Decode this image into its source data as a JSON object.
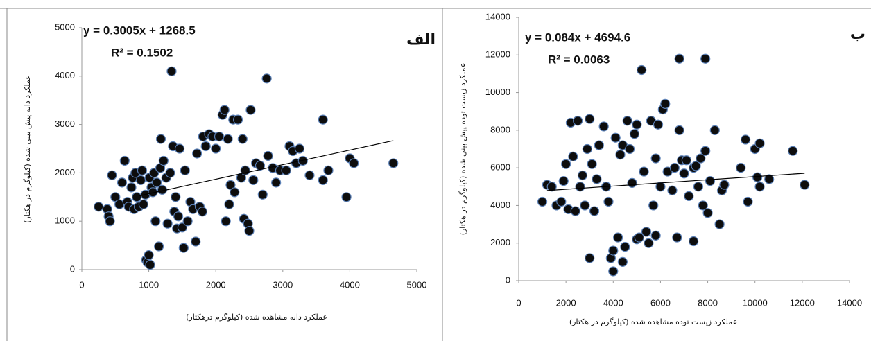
{
  "chart_data": [
    {
      "type": "scatter",
      "title": "الف",
      "equation": "y = 0.3005x + 1268.5",
      "r2_label": "R² = 0.1502",
      "x_label": "عملکرد دانه مشاهده شده (کیلوگرم درهکتار)",
      "y_label": "عملکرد دانه پیش بینی شده (کیلوگرم در هکتار)",
      "xlim": [
        0,
        5000
      ],
      "ylim": [
        0,
        5000
      ],
      "xticks": [
        0,
        1000,
        2000,
        3000,
        4000,
        5000
      ],
      "yticks": [
        0,
        1000,
        2000,
        3000,
        4000,
        5000
      ],
      "color": "#0d0d0d",
      "edge_color": "#5a7fb5",
      "trendline": {
        "slope": 0.3005,
        "intercept": 1268.5,
        "xrange": [
          850,
          4650
        ]
      },
      "x": [
        250,
        380,
        400,
        420,
        450,
        500,
        560,
        600,
        640,
        680,
        700,
        740,
        760,
        780,
        800,
        820,
        850,
        880,
        900,
        920,
        950,
        960,
        980,
        1000,
        1010,
        1020,
        1040,
        1060,
        1080,
        1100,
        1120,
        1150,
        1170,
        1180,
        1200,
        1220,
        1260,
        1280,
        1320,
        1340,
        1360,
        1380,
        1400,
        1420,
        1440,
        1460,
        1500,
        1520,
        1540,
        1580,
        1620,
        1660,
        1700,
        1720,
        1760,
        1800,
        1810,
        1850,
        1900,
        1950,
        2000,
        2050,
        2100,
        2130,
        2150,
        2180,
        2200,
        2220,
        2260,
        2280,
        2330,
        2380,
        2400,
        2420,
        2440,
        2480,
        2500,
        2520,
        2560,
        2600,
        2660,
        2700,
        2760,
        2780,
        2850,
        2900,
        2960,
        3050,
        3100,
        3150,
        3200,
        3250,
        3300,
        3400,
        3600,
        3600,
        3680,
        3950,
        4000,
        4060,
        4650
      ],
      "values": [
        1300,
        1250,
        1100,
        1000,
        1950,
        1500,
        1350,
        1800,
        2250,
        1400,
        1300,
        1700,
        1900,
        1250,
        2000,
        1500,
        1300,
        1850,
        2050,
        1350,
        1550,
        200,
        150,
        300,
        1900,
        100,
        1700,
        1600,
        2000,
        1000,
        1800,
        480,
        2100,
        2700,
        1650,
        2250,
        1900,
        950,
        2000,
        4100,
        2550,
        1200,
        1500,
        850,
        1100,
        2500,
        870,
        450,
        2050,
        1000,
        1400,
        1250,
        580,
        2400,
        1300,
        1200,
        2750,
        2550,
        2800,
        2750,
        2500,
        2750,
        3200,
        3300,
        1000,
        2700,
        1350,
        1750,
        3100,
        1600,
        3100,
        1900,
        2700,
        1050,
        2050,
        950,
        800,
        3300,
        1850,
        2200,
        2150,
        1550,
        3950,
        2350,
        2100,
        1800,
        2050,
        2050,
        2550,
        2450,
        2200,
        2500,
        2250,
        1950,
        3100,
        1850,
        2050,
        1500,
        2300,
        2200,
        2200
      ]
    },
    {
      "type": "scatter",
      "title": "ب",
      "equation": "y = 0.084x + 4694.6",
      "r2_label": "R² = 0.0063",
      "x_label": "عملکرد زیست توده مشاهده شده (کیلوگرم در هکتار)",
      "y_label": "عملکرد زیست توده پیش بینی شده (کیلوگرم در هکتار)",
      "xlim": [
        0,
        14000
      ],
      "ylim": [
        0,
        14000
      ],
      "xticks": [
        0,
        2000,
        4000,
        6000,
        8000,
        10000,
        12000,
        14000
      ],
      "yticks": [
        0,
        2000,
        4000,
        6000,
        8000,
        10000,
        12000,
        14000
      ],
      "color": "#0d0d0d",
      "edge_color": "#5a7fb5",
      "trendline": {
        "slope": 0.084,
        "intercept": 4694.6,
        "xrange": [
          1200,
          12100
        ]
      },
      "x": [
        1000,
        1200,
        1400,
        1600,
        1800,
        1900,
        2000,
        2100,
        2200,
        2300,
        2400,
        2500,
        2600,
        2700,
        2800,
        2900,
        3000,
        3000,
        3100,
        3200,
        3300,
        3400,
        3600,
        3700,
        3800,
        3900,
        4000,
        4000,
        4100,
        4200,
        4300,
        4400,
        4400,
        4500,
        4600,
        4700,
        4800,
        4900,
        5000,
        5000,
        5100,
        5200,
        5300,
        5400,
        5500,
        5600,
        5700,
        5800,
        5800,
        5900,
        6000,
        6100,
        6200,
        6300,
        6500,
        6600,
        6700,
        6800,
        6800,
        6900,
        7000,
        7100,
        7200,
        7400,
        7400,
        7500,
        7600,
        7700,
        7800,
        7900,
        7900,
        8000,
        8100,
        8300,
        8500,
        8600,
        8700,
        9400,
        9600,
        9700,
        10000,
        10100,
        10200,
        10200,
        10600,
        11600,
        12100
      ],
      "values": [
        4200,
        5100,
        5000,
        4000,
        4200,
        5300,
        6200,
        3800,
        8400,
        6600,
        3700,
        8500,
        5000,
        5600,
        4000,
        7000,
        1200,
        8600,
        6200,
        3700,
        5400,
        7200,
        8200,
        5000,
        4200,
        1200,
        500,
        1600,
        7600,
        2300,
        6700,
        1000,
        7200,
        1800,
        8500,
        7000,
        5200,
        7800,
        8300,
        2200,
        2300,
        11200,
        5800,
        2600,
        2000,
        8500,
        4000,
        2400,
        6500,
        8300,
        5000,
        9100,
        9400,
        5800,
        4800,
        6000,
        2300,
        11800,
        8000,
        6400,
        5700,
        6400,
        4500,
        2100,
        6000,
        6100,
        5000,
        6500,
        4000,
        11800,
        6900,
        3600,
        5300,
        8000,
        3000,
        4800,
        5100,
        6000,
        7500,
        4200,
        7000,
        5500,
        7300,
        5000,
        5400,
        6900,
        5100
      ]
    }
  ]
}
